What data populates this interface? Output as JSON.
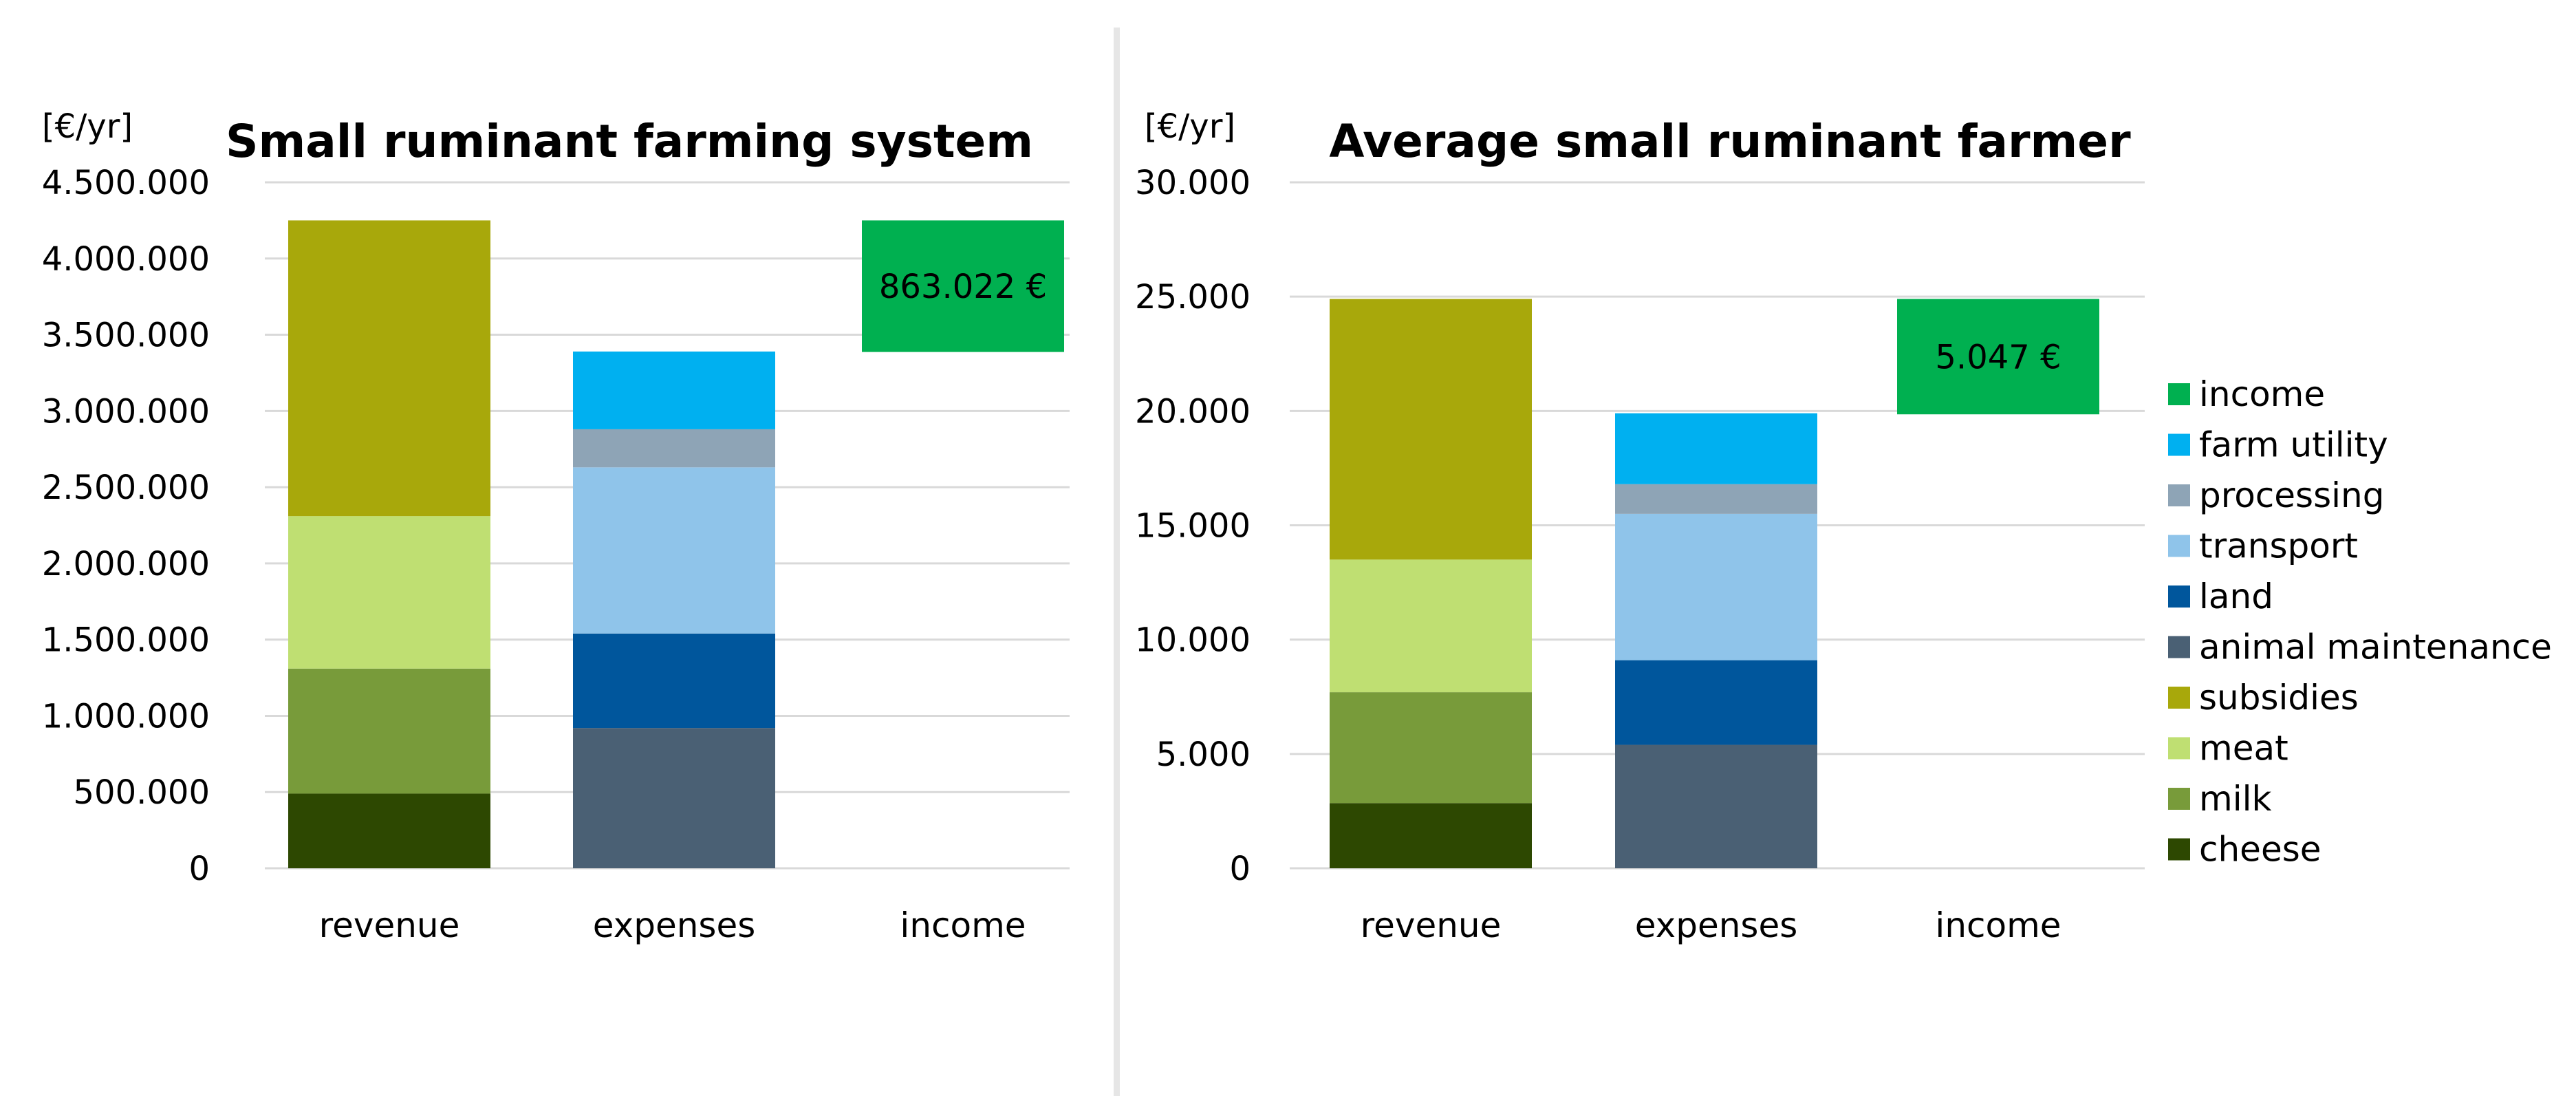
{
  "chart_data": [
    {
      "type": "bar",
      "stacked": true,
      "title": "Small ruminant farming system",
      "ylabel": "[€/yr]",
      "categories": [
        "revenue",
        "expenses",
        "income"
      ],
      "ylim": [
        0,
        4500000
      ],
      "yticks": [
        0,
        500000,
        1000000,
        1500000,
        2000000,
        2500000,
        3000000,
        3500000,
        4000000,
        4500000
      ],
      "ytick_labels": [
        "0",
        "500.000",
        "1.000.000",
        "1.500.000",
        "2.000.000",
        "2.500.000",
        "3.000.000",
        "3.500.000",
        "4.000.000",
        "4.500.000"
      ],
      "grid": true,
      "series": [
        {
          "name": "cheese",
          "values": [
            490000,
            0,
            0
          ]
        },
        {
          "name": "milk",
          "values": [
            820000,
            0,
            0
          ]
        },
        {
          "name": "meat",
          "values": [
            1000000,
            0,
            0
          ]
        },
        {
          "name": "subsidies",
          "values": [
            1940000,
            0,
            0
          ]
        },
        {
          "name": "animal maintenance",
          "values": [
            0,
            920000,
            0
          ]
        },
        {
          "name": "land",
          "values": [
            0,
            620000,
            0
          ]
        },
        {
          "name": "transport",
          "values": [
            0,
            1090000,
            0
          ]
        },
        {
          "name": "processing",
          "values": [
            0,
            250000,
            0
          ]
        },
        {
          "name": "farm utility",
          "values": [
            0,
            510000,
            0
          ]
        }
      ],
      "floating": {
        "name": "income",
        "category": "income",
        "base": 3387000,
        "value": 863022,
        "label": "863.022 €"
      }
    },
    {
      "type": "bar",
      "stacked": true,
      "title": "Average small ruminant farmer",
      "ylabel": "[€/yr]",
      "categories": [
        "revenue",
        "expenses",
        "income"
      ],
      "ylim": [
        0,
        30000
      ],
      "yticks": [
        0,
        5000,
        10000,
        15000,
        20000,
        25000,
        30000
      ],
      "ytick_labels": [
        "0",
        "5.000",
        "10.000",
        "15.000",
        "20.000",
        "25.000",
        "30.000"
      ],
      "grid": true,
      "legend_position": "right",
      "series": [
        {
          "name": "cheese",
          "values": [
            2850,
            0,
            0
          ]
        },
        {
          "name": "milk",
          "values": [
            4850,
            0,
            0
          ]
        },
        {
          "name": "meat",
          "values": [
            5800,
            0,
            0
          ]
        },
        {
          "name": "subsidies",
          "values": [
            11400,
            0,
            0
          ]
        },
        {
          "name": "animal maintenance",
          "values": [
            0,
            5400,
            0
          ]
        },
        {
          "name": "land",
          "values": [
            0,
            3700,
            0
          ]
        },
        {
          "name": "transport",
          "values": [
            0,
            6400,
            0
          ]
        },
        {
          "name": "processing",
          "values": [
            0,
            1300,
            0
          ]
        },
        {
          "name": "farm utility",
          "values": [
            0,
            3100,
            0
          ]
        }
      ],
      "floating": {
        "name": "income",
        "category": "income",
        "base": 19853,
        "value": 5047,
        "label": "5.047 €"
      }
    }
  ],
  "legend": [
    {
      "name": "income",
      "color": "#00b050"
    },
    {
      "name": "farm utility",
      "color": "#00b0f0"
    },
    {
      "name": "processing",
      "color": "#8ea4b6"
    },
    {
      "name": "transport",
      "color": "#8fc4ea"
    },
    {
      "name": "land",
      "color": "#00569c"
    },
    {
      "name": "animal maintenance",
      "color": "#4a6074"
    },
    {
      "name": "subsidies",
      "color": "#a8a80b"
    },
    {
      "name": "meat",
      "color": "#bfdf72"
    },
    {
      "name": "milk",
      "color": "#789b3a"
    },
    {
      "name": "cheese",
      "color": "#2d4801"
    }
  ]
}
